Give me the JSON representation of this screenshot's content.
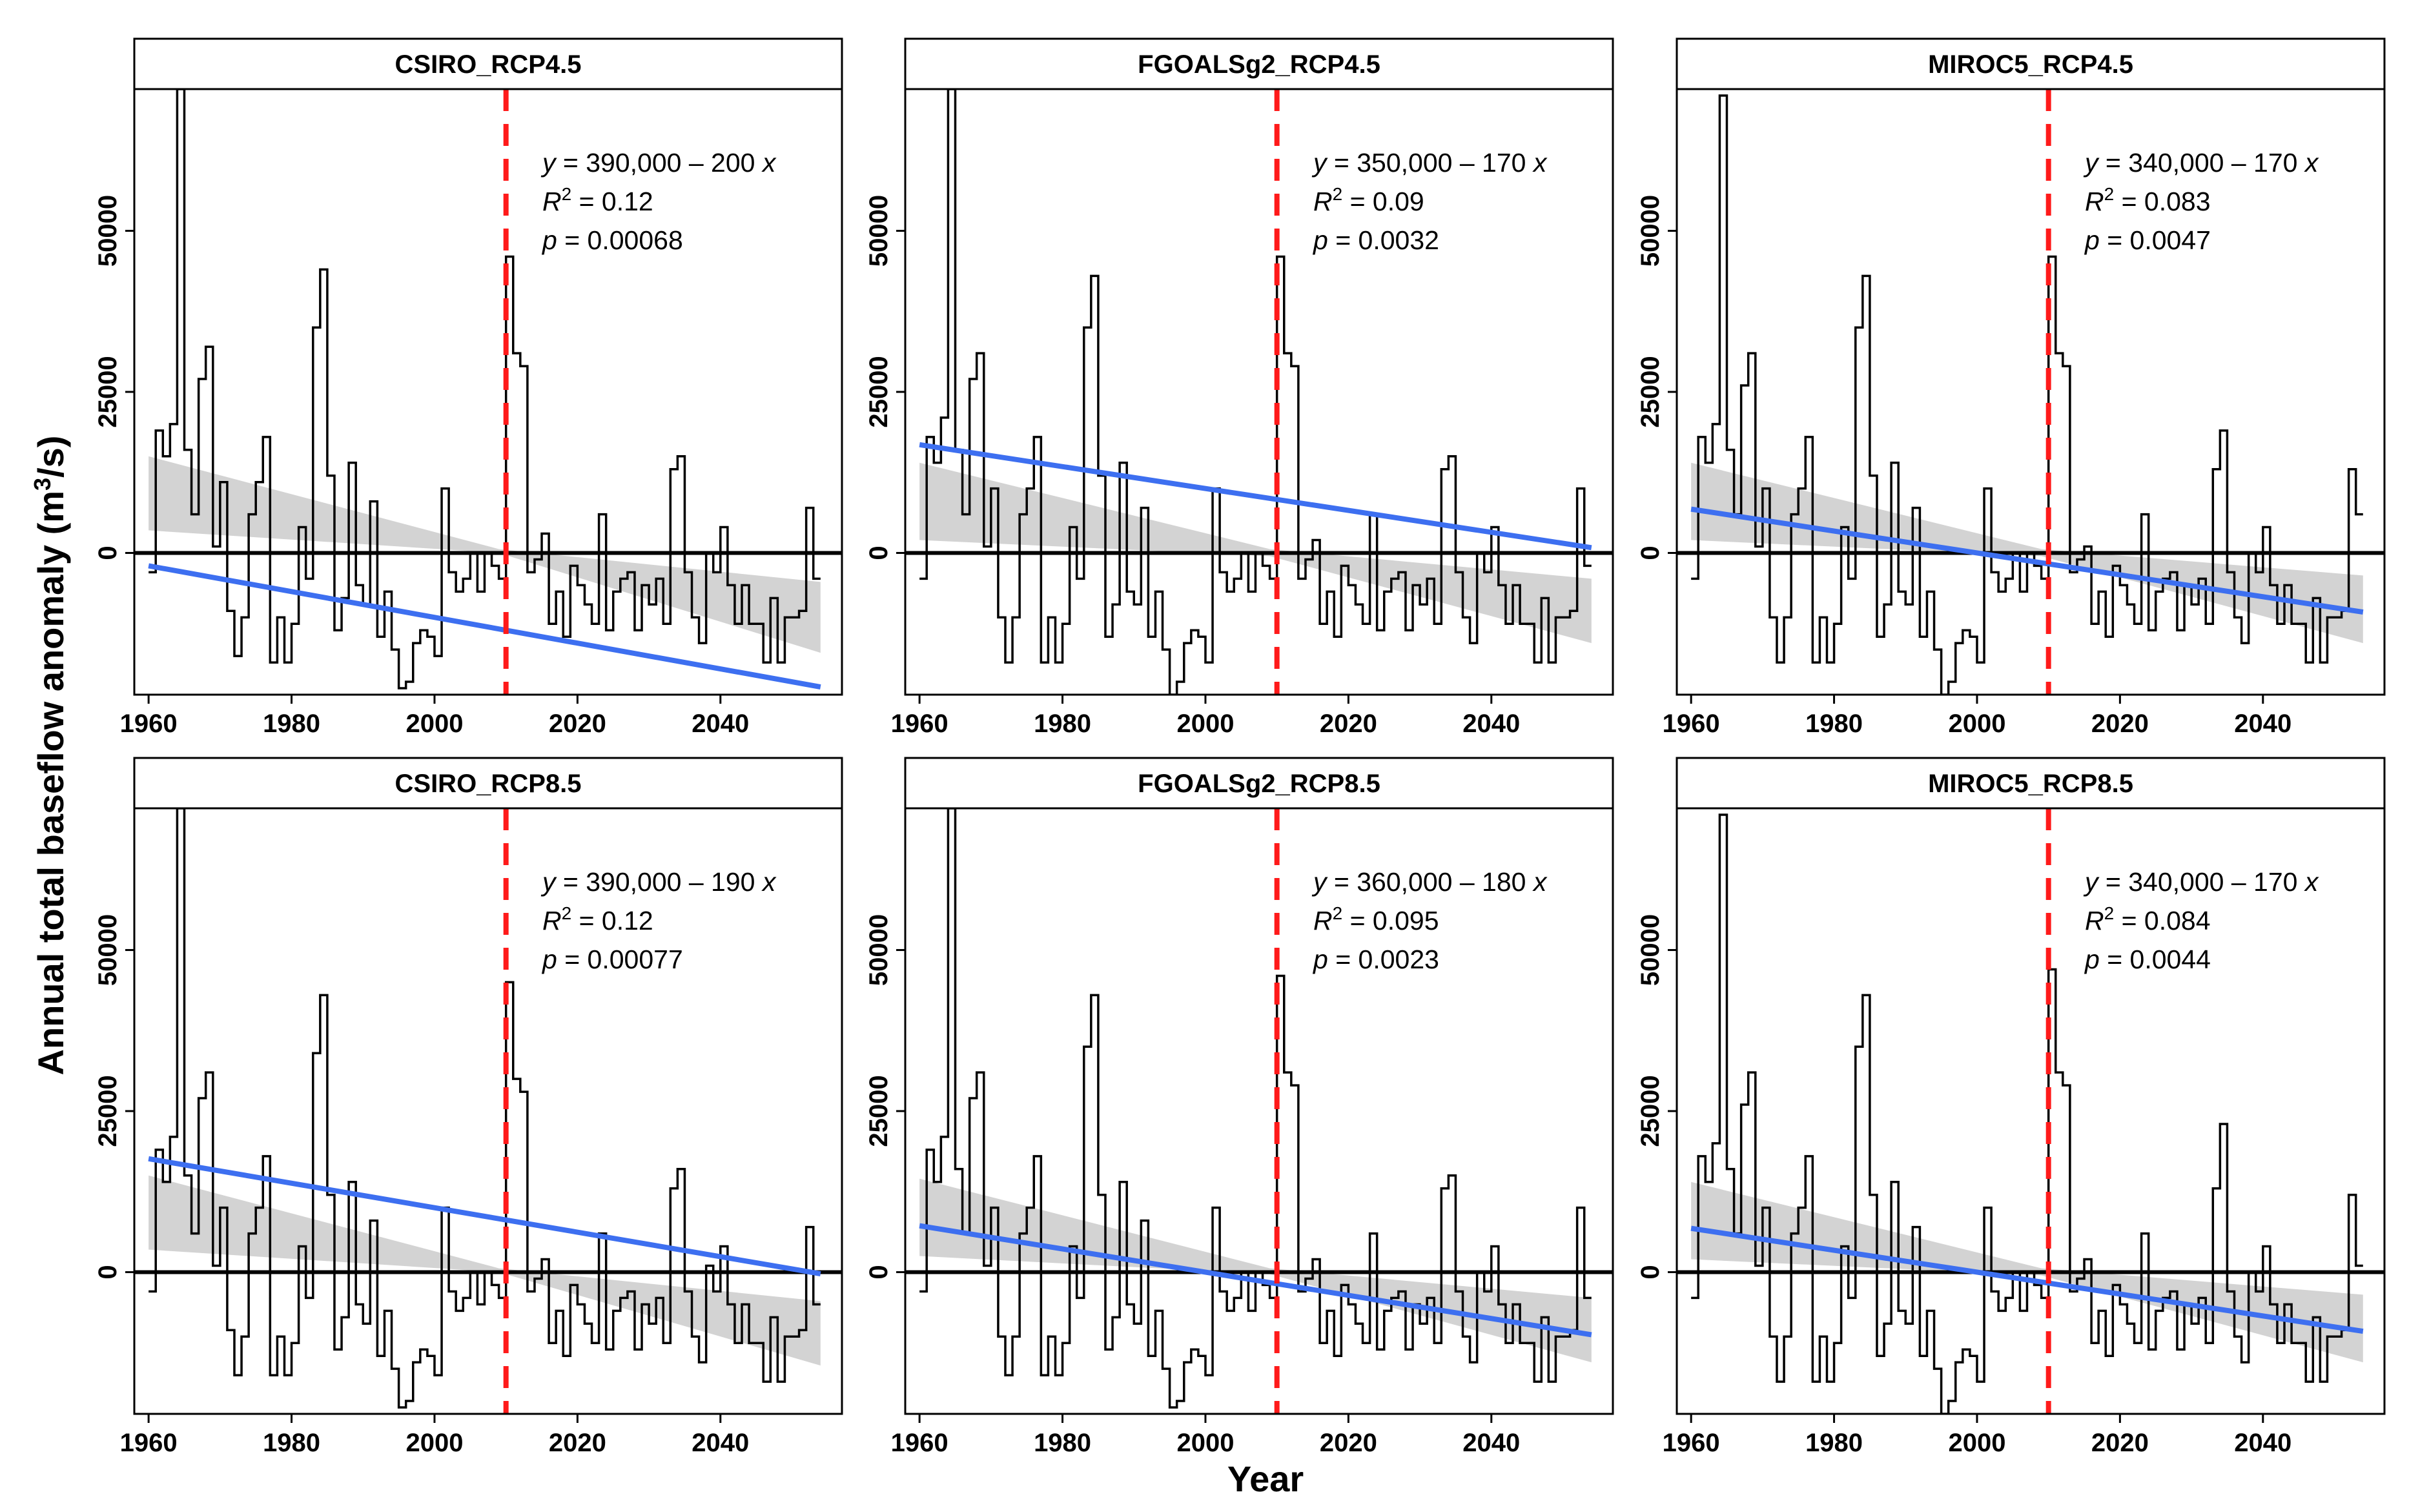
{
  "figure": {
    "ylabel_main": "Annual total baseflow anomaly",
    "ylabel_unit_pre": "(m",
    "ylabel_unit_sup": "3",
    "ylabel_unit_post": "/s)",
    "xlabel": "Year"
  },
  "chart_data": [
    {
      "type": "line",
      "title": "CSIRO_RCP4.5",
      "xlabel": "Year",
      "ylabel": "Annual total baseflow anomaly (m3/s)",
      "xlim": [
        1958,
        2057
      ],
      "ylim": [
        -22000,
        72000
      ],
      "xticks": [
        1960,
        1980,
        2000,
        2020,
        2040
      ],
      "yticks": [
        0,
        25000,
        50000
      ],
      "ytick_labels": [
        "0",
        "25000",
        "50000"
      ],
      "hline": 0,
      "vline": 2010,
      "equation": {
        "lhs": "y",
        "rhs": " = 390,000 – 200 ",
        "var": "x"
      },
      "r2": {
        "prefix": "R",
        "sup": "2",
        "value": " = 0.12"
      },
      "pval": {
        "prefix": "p",
        "value": " = 0.00068"
      },
      "trend": {
        "slope": -200,
        "intercept": 390000
      },
      "series": [
        {
          "style": "step",
          "x_start": 1960,
          "values": [
            -3000,
            19000,
            15000,
            20000,
            72000,
            16000,
            6000,
            27000,
            32000,
            1000,
            11000,
            -9000,
            -16000,
            -10000,
            6000,
            11000,
            18000,
            -17000,
            -10000,
            -17000,
            -11000,
            4000,
            -4000,
            35000,
            44000,
            12000,
            -12000,
            -7000,
            14000,
            -5000,
            -8000,
            8000,
            -13000,
            -6000,
            -15000,
            -21000,
            -20000,
            -14000,
            -12000,
            -13000,
            -16000,
            10000,
            -3000,
            -6000,
            -4000,
            0,
            -6000,
            0,
            -2000,
            -4000,
            46000,
            31000,
            29000,
            -3000,
            -1000,
            3000,
            -11000,
            -6000,
            -13000,
            -2000,
            -5000,
            -8000,
            -11000,
            6000,
            -12000,
            -6000,
            -4000,
            -3000,
            -12000,
            -5000,
            -8000,
            -4000,
            -11000,
            13000,
            15000,
            -3000,
            -10000,
            -14000,
            0,
            -3000,
            4000,
            -5000,
            -11000,
            -5000,
            -11000,
            -11000,
            -17000,
            -7000,
            -17000,
            -10000,
            -10000,
            -9000,
            7000,
            -4000
          ]
        }
      ],
      "band": {
        "xs": [
          1960,
          2009,
          2054
        ],
        "lower": [
          3500,
          0,
          -15500
        ],
        "upper": [
          15000,
          600,
          -4500
        ]
      }
    },
    {
      "type": "line",
      "title": "FGOALSg2_RCP4.5",
      "xlabel": "Year",
      "ylabel": "Annual total baseflow anomaly (m3/s)",
      "xlim": [
        1958,
        2057
      ],
      "ylim": [
        -22000,
        72000
      ],
      "xticks": [
        1960,
        1980,
        2000,
        2020,
        2040
      ],
      "yticks": [
        0,
        25000,
        50000
      ],
      "ytick_labels": [
        "0",
        "25000",
        "50000"
      ],
      "hline": 0,
      "vline": 2010,
      "equation": {
        "lhs": "y",
        "rhs": " = 350,000 – 170 ",
        "var": "x"
      },
      "r2": {
        "prefix": "R",
        "sup": "2",
        "value": " = 0.09"
      },
      "pval": {
        "prefix": "p",
        "value": " = 0.0032"
      },
      "trend": {
        "slope": -170,
        "intercept": 350000
      },
      "series": [
        {
          "style": "step",
          "x_start": 1960,
          "values": [
            -4000,
            18000,
            14000,
            21000,
            72000,
            16000,
            6000,
            27000,
            31000,
            1000,
            10000,
            -10000,
            -17000,
            -10000,
            6000,
            10000,
            18000,
            -17000,
            -10000,
            -17000,
            -11000,
            4000,
            -4000,
            35000,
            43000,
            12000,
            -13000,
            -8000,
            14000,
            -6000,
            -8000,
            7000,
            -13000,
            -6000,
            -15000,
            -22000,
            -20000,
            -14000,
            -12000,
            -13000,
            -17000,
            10000,
            -3000,
            -6000,
            -4000,
            0,
            -6000,
            0,
            -2000,
            -4000,
            46000,
            31000,
            29000,
            -4000,
            -1000,
            2000,
            -11000,
            -6000,
            -13000,
            -2000,
            -5000,
            -8000,
            -11000,
            6000,
            -12000,
            -6000,
            -4000,
            -3000,
            -12000,
            -5000,
            -8000,
            -4000,
            -11000,
            13000,
            15000,
            -3000,
            -10000,
            -14000,
            0,
            -3000,
            4000,
            -5000,
            -11000,
            -5000,
            -11000,
            -11000,
            -17000,
            -7000,
            -17000,
            -10000,
            -10000,
            -9000,
            10000,
            -2000
          ]
        }
      ],
      "band": {
        "xs": [
          1960,
          2009,
          2054
        ],
        "lower": [
          2000,
          -500,
          -14000
        ],
        "upper": [
          14000,
          600,
          -4000
        ]
      }
    },
    {
      "type": "line",
      "title": "MIROC5_RCP4.5",
      "xlabel": "Year",
      "ylabel": "Annual total baseflow anomaly (m3/s)",
      "xlim": [
        1958,
        2057
      ],
      "ylim": [
        -22000,
        72000
      ],
      "xticks": [
        1960,
        1980,
        2000,
        2020,
        2040
      ],
      "yticks": [
        0,
        25000,
        50000
      ],
      "ytick_labels": [
        "0",
        "25000",
        "50000"
      ],
      "hline": 0,
      "vline": 2010,
      "equation": {
        "lhs": "y",
        "rhs": " = 340,000 – 170 ",
        "var": "x"
      },
      "r2": {
        "prefix": "R",
        "sup": "2",
        "value": " = 0.083"
      },
      "pval": {
        "prefix": "p",
        "value": " = 0.0047"
      },
      "trend": {
        "slope": -170,
        "intercept": 340000
      },
      "series": [
        {
          "style": "step",
          "x_start": 1960,
          "values": [
            -4000,
            18000,
            14000,
            20000,
            71000,
            16000,
            6000,
            26000,
            31000,
            1000,
            10000,
            -10000,
            -17000,
            -10000,
            6000,
            10000,
            18000,
            -17000,
            -10000,
            -17000,
            -11000,
            4000,
            -4000,
            35000,
            43000,
            12000,
            -13000,
            -8000,
            14000,
            -6000,
            -8000,
            7000,
            -13000,
            -6000,
            -15000,
            -22000,
            -20000,
            -14000,
            -12000,
            -13000,
            -17000,
            10000,
            -3000,
            -6000,
            -4000,
            0,
            -6000,
            0,
            -2000,
            -4000,
            46000,
            31000,
            29000,
            -3000,
            -1000,
            1000,
            -11000,
            -6000,
            -13000,
            -2000,
            -5000,
            -8000,
            -11000,
            6000,
            -12000,
            -6000,
            -4000,
            -3000,
            -12000,
            -5000,
            -8000,
            -4000,
            -11000,
            13000,
            19000,
            -3000,
            -10000,
            -14000,
            0,
            -3000,
            4000,
            -5000,
            -11000,
            -5000,
            -11000,
            -11000,
            -17000,
            -7000,
            -17000,
            -10000,
            -10000,
            -9000,
            13000,
            6000
          ]
        }
      ],
      "band": {
        "xs": [
          1960,
          2009,
          2054
        ],
        "lower": [
          2000,
          -500,
          -14000
        ],
        "upper": [
          14000,
          600,
          -3500
        ]
      }
    },
    {
      "type": "line",
      "title": "CSIRO_RCP8.5",
      "xlabel": "Year",
      "ylabel": "Annual total baseflow anomaly (m3/s)",
      "xlim": [
        1958,
        2057
      ],
      "ylim": [
        -22000,
        72000
      ],
      "xticks": [
        1960,
        1980,
        2000,
        2020,
        2040
      ],
      "yticks": [
        0,
        25000,
        50000
      ],
      "ytick_labels": [
        "0",
        "25000",
        "50000"
      ],
      "hline": 0,
      "vline": 2010,
      "equation": {
        "lhs": "y",
        "rhs": " = 390,000 – 190 ",
        "var": "x"
      },
      "r2": {
        "prefix": "R",
        "sup": "2",
        "value": " = 0.12"
      },
      "pval": {
        "prefix": "p",
        "value": " = 0.00077"
      },
      "trend": {
        "slope": -190,
        "intercept": 390000
      },
      "series": [
        {
          "style": "step",
          "x_start": 1960,
          "values": [
            -3000,
            19000,
            14000,
            21000,
            72000,
            15000,
            6000,
            27000,
            31000,
            1000,
            10000,
            -9000,
            -16000,
            -10000,
            6000,
            10000,
            18000,
            -16000,
            -10000,
            -16000,
            -11000,
            4000,
            -4000,
            34000,
            43000,
            12000,
            -12000,
            -7000,
            14000,
            -5000,
            -8000,
            8000,
            -13000,
            -6000,
            -15000,
            -21000,
            -20000,
            -14000,
            -12000,
            -13000,
            -16000,
            10000,
            -3000,
            -6000,
            -4000,
            0,
            -5000,
            0,
            -2000,
            -4000,
            45000,
            30000,
            28000,
            -3000,
            -1000,
            2000,
            -11000,
            -6000,
            -13000,
            -2000,
            -5000,
            -8000,
            -11000,
            6000,
            -12000,
            -6000,
            -4000,
            -3000,
            -12000,
            -5000,
            -8000,
            -4000,
            -11000,
            13000,
            16000,
            -3000,
            -10000,
            -14000,
            1000,
            -3000,
            4000,
            -5000,
            -11000,
            -5000,
            -11000,
            -11000,
            -17000,
            -7000,
            -17000,
            -10000,
            -10000,
            -9000,
            7000,
            -5000
          ]
        }
      ],
      "band": {
        "xs": [
          1960,
          2009,
          2054
        ],
        "lower": [
          3500,
          0,
          -14500
        ],
        "upper": [
          15000,
          600,
          -4500
        ]
      }
    },
    {
      "type": "line",
      "title": "FGOALSg2_RCP8.5",
      "xlabel": "Year",
      "ylabel": "Annual total baseflow anomaly (m3/s)",
      "xlim": [
        1958,
        2057
      ],
      "ylim": [
        -22000,
        72000
      ],
      "xticks": [
        1960,
        1980,
        2000,
        2020,
        2040
      ],
      "yticks": [
        0,
        25000,
        50000
      ],
      "ytick_labels": [
        "0",
        "25000",
        "50000"
      ],
      "hline": 0,
      "vline": 2010,
      "equation": {
        "lhs": "y",
        "rhs": " = 360,000 – 180 ",
        "var": "x"
      },
      "r2": {
        "prefix": "R",
        "sup": "2",
        "value": " = 0.095"
      },
      "pval": {
        "prefix": "p",
        "value": " = 0.0023"
      },
      "trend": {
        "slope": -180,
        "intercept": 360000
      },
      "series": [
        {
          "style": "step",
          "x_start": 1960,
          "values": [
            -3000,
            19000,
            14000,
            21000,
            72000,
            16000,
            6000,
            27000,
            31000,
            1000,
            10000,
            -10000,
            -16000,
            -10000,
            6000,
            10000,
            18000,
            -16000,
            -10000,
            -16000,
            -11000,
            4000,
            -4000,
            35000,
            43000,
            12000,
            -12000,
            -7000,
            14000,
            -5000,
            -8000,
            8000,
            -13000,
            -6000,
            -15000,
            -21000,
            -20000,
            -14000,
            -12000,
            -13000,
            -16000,
            10000,
            -3000,
            -6000,
            -4000,
            0,
            -6000,
            0,
            -2000,
            -4000,
            46000,
            31000,
            29000,
            -3000,
            -1000,
            2000,
            -11000,
            -6000,
            -13000,
            -2000,
            -5000,
            -8000,
            -11000,
            6000,
            -12000,
            -6000,
            -4000,
            -3000,
            -12000,
            -5000,
            -8000,
            -4000,
            -11000,
            13000,
            15000,
            -3000,
            -10000,
            -14000,
            0,
            -3000,
            4000,
            -5000,
            -11000,
            -5000,
            -11000,
            -11000,
            -17000,
            -7000,
            -17000,
            -10000,
            -10000,
            -9000,
            10000,
            -4000
          ]
        }
      ],
      "band": {
        "xs": [
          1960,
          2009,
          2054
        ],
        "lower": [
          2500,
          -300,
          -14000
        ],
        "upper": [
          14500,
          600,
          -4000
        ]
      }
    },
    {
      "type": "line",
      "title": "MIROC5_RCP8.5",
      "xlabel": "Year",
      "ylabel": "Annual total baseflow anomaly (m3/s)",
      "xlim": [
        1958,
        2057
      ],
      "ylim": [
        -22000,
        72000
      ],
      "xticks": [
        1960,
        1980,
        2000,
        2020,
        2040
      ],
      "yticks": [
        0,
        25000,
        50000
      ],
      "ytick_labels": [
        "0",
        "25000",
        "50000"
      ],
      "hline": 0,
      "vline": 2010,
      "equation": {
        "lhs": "y",
        "rhs": " = 340,000 – 170 ",
        "var": "x"
      },
      "r2": {
        "prefix": "R",
        "sup": "2",
        "value": " = 0.084"
      },
      "pval": {
        "prefix": "p",
        "value": " = 0.0044"
      },
      "trend": {
        "slope": -170,
        "intercept": 340000
      },
      "series": [
        {
          "style": "step",
          "x_start": 1960,
          "values": [
            -4000,
            18000,
            14000,
            20000,
            71000,
            16000,
            6000,
            26000,
            31000,
            1000,
            10000,
            -10000,
            -17000,
            -10000,
            6000,
            10000,
            18000,
            -17000,
            -10000,
            -17000,
            -11000,
            4000,
            -4000,
            35000,
            43000,
            12000,
            -13000,
            -8000,
            14000,
            -6000,
            -8000,
            7000,
            -13000,
            -6000,
            -15000,
            -22000,
            -20000,
            -14000,
            -12000,
            -13000,
            -17000,
            10000,
            -3000,
            -6000,
            -4000,
            0,
            -6000,
            0,
            -2000,
            -4000,
            47000,
            31000,
            29000,
            -3000,
            -1000,
            2000,
            -11000,
            -6000,
            -13000,
            -2000,
            -5000,
            -8000,
            -11000,
            6000,
            -12000,
            -6000,
            -4000,
            -3000,
            -12000,
            -5000,
            -8000,
            -4000,
            -11000,
            13000,
            23000,
            -3000,
            -10000,
            -14000,
            0,
            -3000,
            4000,
            -5000,
            -11000,
            -5000,
            -11000,
            -11000,
            -17000,
            -7000,
            -17000,
            -10000,
            -10000,
            -9000,
            12000,
            1000
          ]
        }
      ],
      "band": {
        "xs": [
          1960,
          2009,
          2054
        ],
        "lower": [
          2000,
          -500,
          -14000
        ],
        "upper": [
          14000,
          600,
          -3500
        ]
      }
    }
  ]
}
